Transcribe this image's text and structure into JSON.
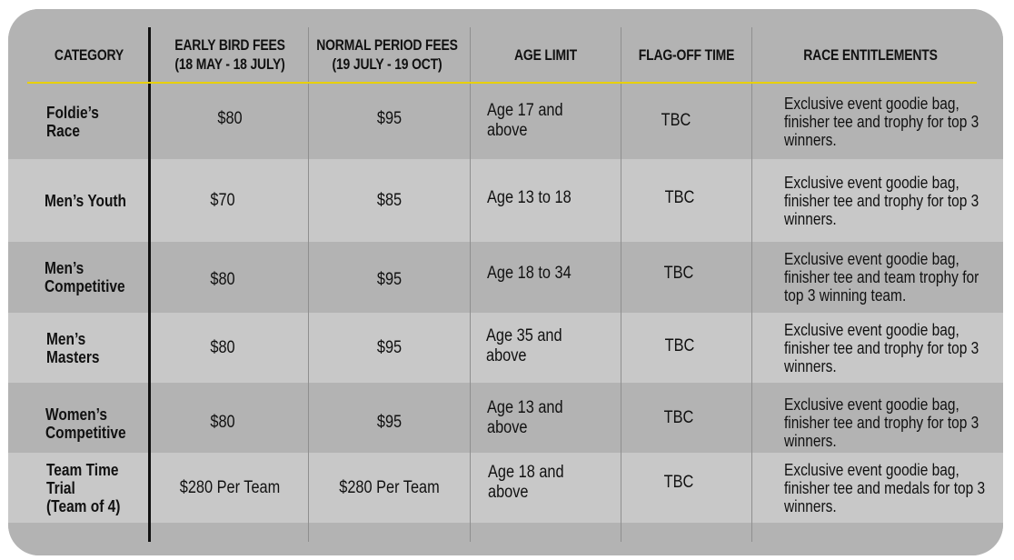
{
  "headers": {
    "category": "CATEGORY",
    "early_bird": "EARLY BIRD FEES\n(18 MAY - 18 JULY)",
    "normal": "NORMAL PERIOD FEES\n(19 JULY - 19 OCT)",
    "age": "AGE LIMIT",
    "flagoff": "FLAG-OFF TIME",
    "entitlements": "RACE ENTITLEMENTS"
  },
  "rows": [
    {
      "category": "Foldie’s Race",
      "early": "$80",
      "normal": "$95",
      "age": "Age 17 and above",
      "flagoff": "TBC",
      "entitlements": "Exclusive event goodie bag, finisher tee and trophy for top 3 winners."
    },
    {
      "category": "Men’s Youth",
      "early": "$70",
      "normal": "$85",
      "age": "Age 13 to 18",
      "flagoff": "TBC",
      "entitlements": "Exclusive event goodie bag, finisher tee and trophy for top 3 winners."
    },
    {
      "category": "Men’s\nCompetitive",
      "early": "$80",
      "normal": "$95",
      "age": "Age 18 to 34",
      "flagoff": "TBC",
      "entitlements": "Exclusive event goodie bag, finisher tee and team trophy for top 3 winning team."
    },
    {
      "category": "Men’s\nMasters",
      "early": "$80",
      "normal": "$95",
      "age": "Age 35 and above",
      "flagoff": "TBC",
      "entitlements": "Exclusive event goodie bag, finisher tee and trophy for top 3 winners."
    },
    {
      "category": "Women’s\nCompetitive",
      "early": "$80",
      "normal": "$95",
      "age": "Age 13 and above",
      "flagoff": "TBC",
      "entitlements": "Exclusive event goodie bag, finisher tee and trophy for top 3 winners."
    },
    {
      "category": "Team Time Trial\n(Team of 4)",
      "early": "$280 Per Team",
      "normal": "$280 Per Team",
      "age": "Age 18 and above",
      "flagoff": "TBC",
      "entitlements": "Exclusive event goodie bag, finisher tee and medals for top 3 winners."
    }
  ],
  "colors": {
    "card_dark": "#b3b3b3",
    "card_light": "#c8c8c8",
    "header_rule": "#e8d000",
    "divider": "#111111"
  }
}
